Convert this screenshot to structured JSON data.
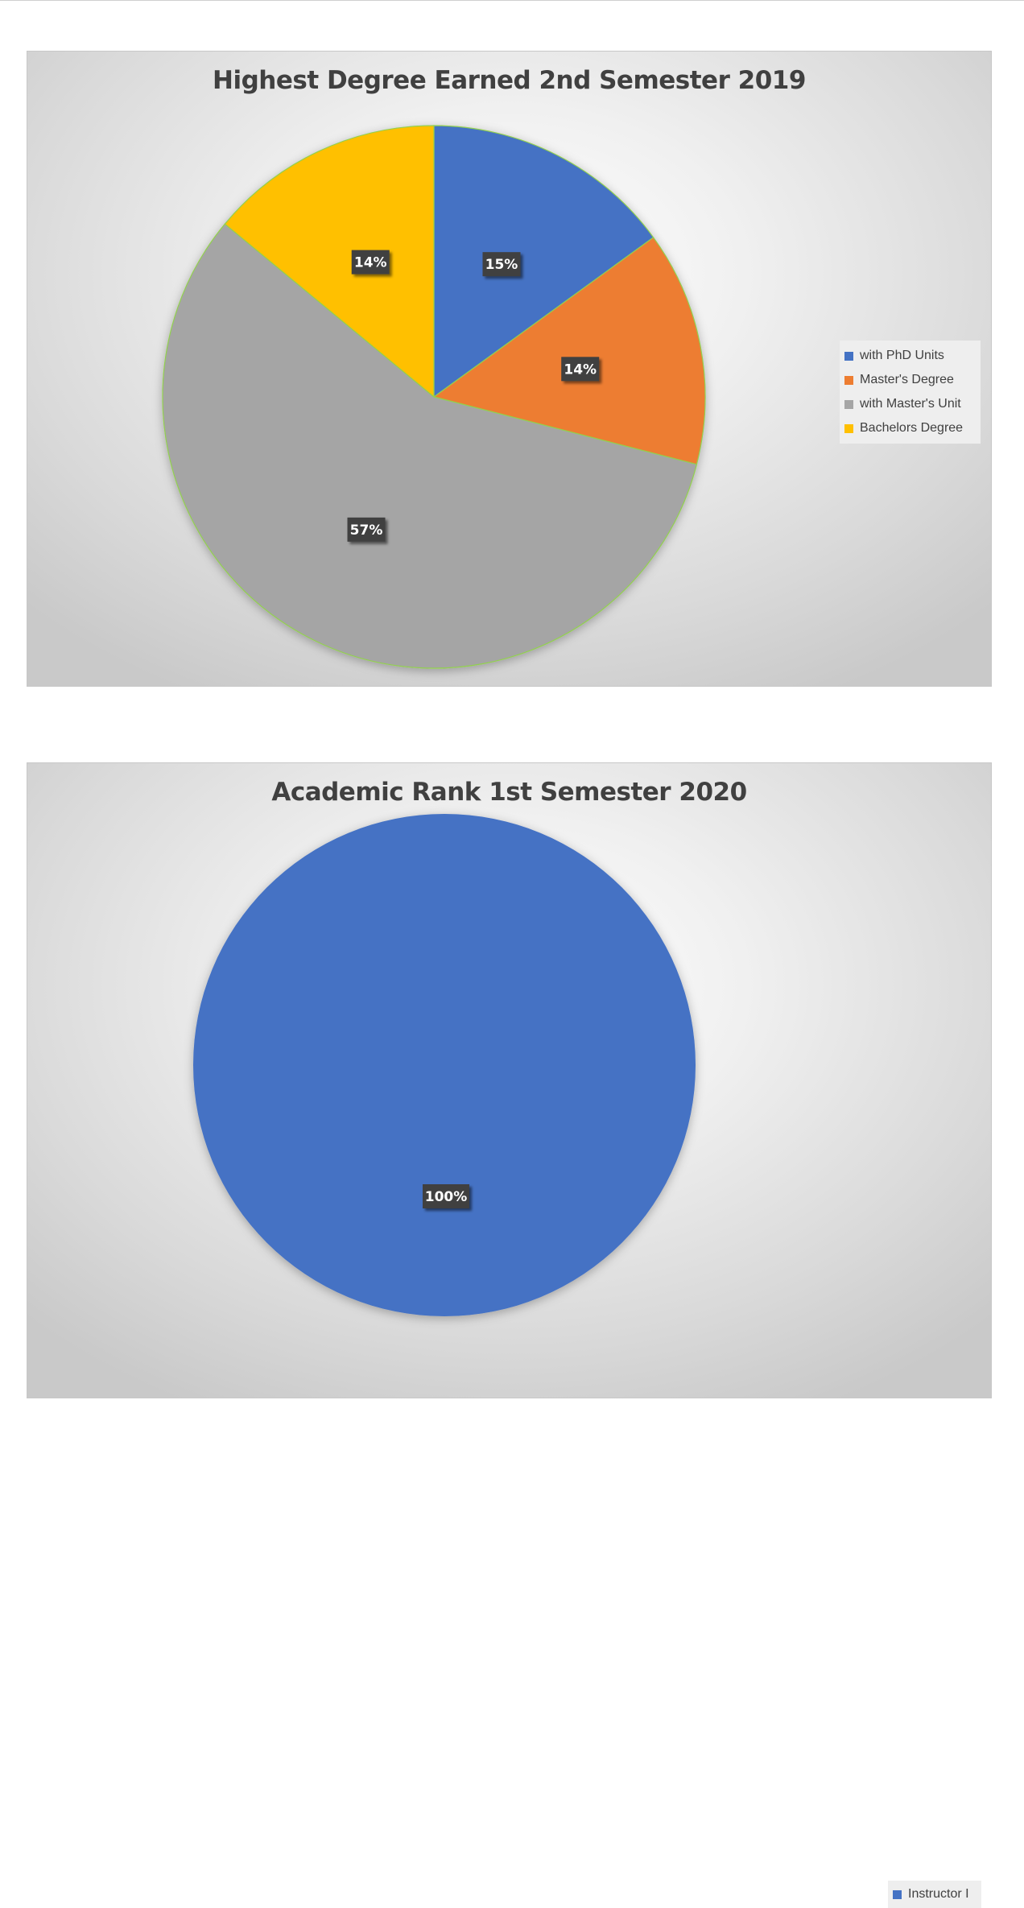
{
  "chart_data": [
    {
      "type": "pie",
      "title": "Highest Degree Earned 2nd Semester 2019",
      "categories": [
        "with PhD Units",
        "Master's Degree",
        "with Master's Unit",
        "Bachelors Degree"
      ],
      "values": [
        15,
        14,
        57,
        14
      ],
      "data_labels": [
        "15%",
        "14%",
        "57%",
        "14%"
      ],
      "colors": [
        "#4472C4",
        "#ED7D31",
        "#A5A5A5",
        "#FFC000"
      ],
      "legend_position": "right"
    },
    {
      "type": "pie",
      "title": "Academic Rank 1st Semester 2020",
      "categories": [
        "Instructor I"
      ],
      "values": [
        100
      ],
      "data_labels": [
        "100%"
      ],
      "colors": [
        "#4472C4"
      ],
      "legend_position": "right"
    }
  ]
}
